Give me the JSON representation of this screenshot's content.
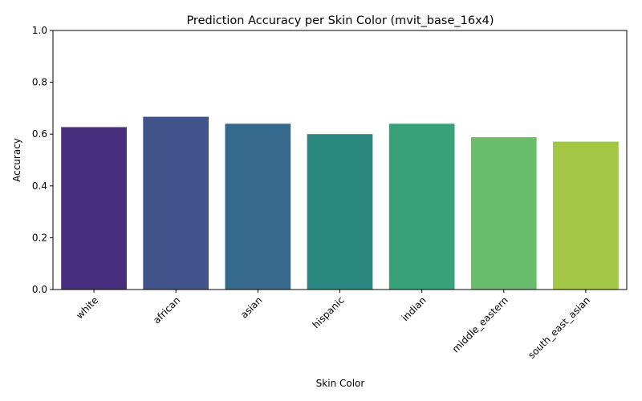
{
  "chart_data": {
    "type": "bar",
    "title": "Prediction Accuracy per Skin Color (mvit_base_16x4)",
    "xlabel": "Skin Color",
    "ylabel": "Accuracy",
    "ylim": [
      0,
      1
    ],
    "yticks": [
      "0.0",
      "0.2",
      "0.4",
      "0.6",
      "0.8",
      "1.0"
    ],
    "categories": [
      "white",
      "african",
      "asian",
      "hispanic",
      "indian",
      "middle_eastern",
      "south_east_asian"
    ],
    "values": [
      0.627,
      0.667,
      0.64,
      0.6,
      0.64,
      0.588,
      0.571
    ],
    "colors": [
      "#472f7d",
      "#41538b",
      "#35698d",
      "#2a8881",
      "#37a17a",
      "#6abd6a",
      "#a2c744"
    ],
    "grid": false,
    "legend": "none"
  }
}
